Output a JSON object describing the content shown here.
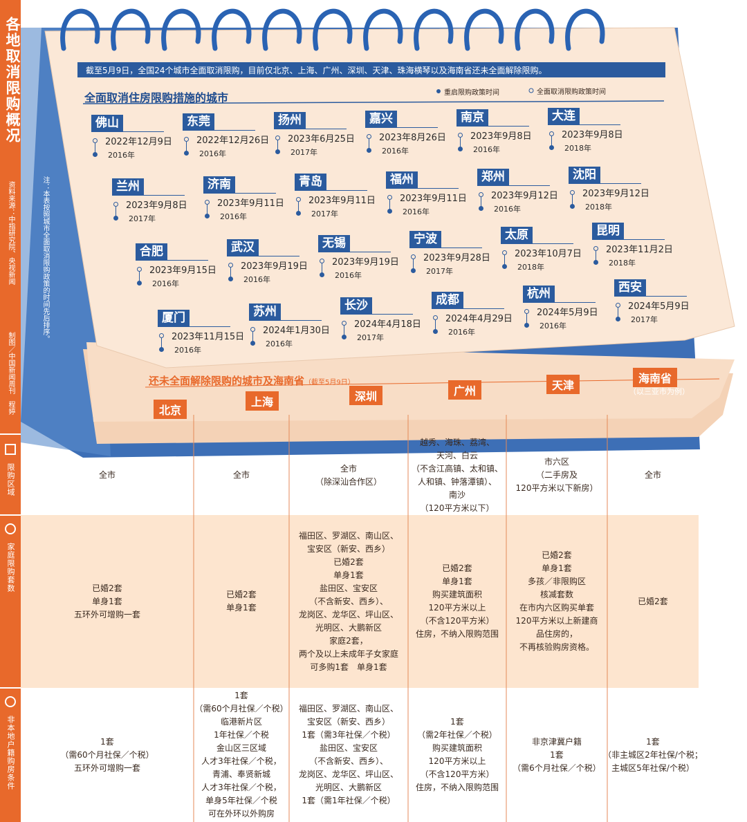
{
  "sidebar": {
    "title": "各地取消限购概况",
    "source": "资料来源：中指研究院、央视新闻",
    "credit": "制图／中国新闻周刊　程婷"
  },
  "note": "注：本表按照城市全面取消限购政策的时间先后排序。",
  "intro": "截至5月9日，全国24个城市全面取消限购，目前仅北京、上海、广州、深圳、天津、珠海横琴以及海南省还未全面解除限购。",
  "section_title": "全面取消住房限购措施的城市",
  "legend": [
    "重启限购政策时间",
    "全面取消限购政策时间"
  ],
  "cities": [
    {
      "name": "佛山",
      "date": "2022年12月9日",
      "year": "2016年"
    },
    {
      "name": "东莞",
      "date": "2022年12月26日",
      "year": "2016年"
    },
    {
      "name": "扬州",
      "date": "2023年6月25日",
      "year": "2017年"
    },
    {
      "name": "嘉兴",
      "date": "2023年8月26日",
      "year": "2016年"
    },
    {
      "name": "南京",
      "date": "2023年9月8日",
      "year": "2016年"
    },
    {
      "name": "大连",
      "date": "2023年9月8日",
      "year": "2018年"
    },
    {
      "name": "兰州",
      "date": "2023年9月8日",
      "year": "2017年"
    },
    {
      "name": "济南",
      "date": "2023年9月11日",
      "year": "2016年"
    },
    {
      "name": "青岛",
      "date": "2023年9月11日",
      "year": "2017年"
    },
    {
      "name": "福州",
      "date": "2023年9月11日",
      "year": "2016年"
    },
    {
      "name": "郑州",
      "date": "2023年9月12日",
      "year": "2016年"
    },
    {
      "name": "沈阳",
      "date": "2023年9月12日",
      "year": "2018年"
    },
    {
      "name": "合肥",
      "date": "2023年9月15日",
      "year": "2016年"
    },
    {
      "name": "武汉",
      "date": "2023年9月19日",
      "year": "2016年"
    },
    {
      "name": "无锡",
      "date": "2023年9月19日",
      "year": "2016年"
    },
    {
      "name": "宁波",
      "date": "2023年9月28日",
      "year": "2017年"
    },
    {
      "name": "太原",
      "date": "2023年10月7日",
      "year": "2018年"
    },
    {
      "name": "昆明",
      "date": "2023年11月2日",
      "year": "2018年"
    },
    {
      "name": "厦门",
      "date": "2023年11月15日",
      "year": "2016年"
    },
    {
      "name": "苏州",
      "date": "2024年1月30日",
      "year": "2016年"
    },
    {
      "name": "长沙",
      "date": "2024年4月18日",
      "year": "2017年"
    },
    {
      "name": "成都",
      "date": "2024年4月29日",
      "year": "2016年"
    },
    {
      "name": "杭州",
      "date": "2024年5月9日",
      "year": "2016年"
    },
    {
      "name": "西安",
      "date": "2024年5月9日",
      "year": "2017年"
    }
  ],
  "table": {
    "title": "还未全面解除限购的城市及海南省",
    "subtitle": "（截至5月9日）",
    "columns": [
      {
        "name": "北京"
      },
      {
        "name": "上海"
      },
      {
        "name": "深圳"
      },
      {
        "name": "广州"
      },
      {
        "name": "天津"
      },
      {
        "name": "海南省",
        "note": "（以三亚市为例）"
      }
    ],
    "rows": [
      {
        "label": "限购区域",
        "cells": [
          [
            "全市"
          ],
          [
            "全市"
          ],
          [
            "全市",
            "（除深汕合作区）"
          ],
          [
            "越秀、海珠、荔湾、",
            "天河、白云",
            "（不含江高镇、太和镇、",
            "人和镇、钟落潭镇）、",
            "南沙",
            "（120平方米以下）"
          ],
          [
            "市六区",
            "（二手房及",
            "120平方米以下新房）"
          ],
          [
            "全市"
          ]
        ]
      },
      {
        "label": "家庭限购套数",
        "cells": [
          [
            "已婚2套",
            "单身1套",
            "五环外可增购一套"
          ],
          [
            "已婚2套",
            "单身1套"
          ],
          [
            "福田区、罗湖区、南山区、",
            "宝安区（新安、西乡）",
            "已婚2套",
            "单身1套",
            "盐田区、宝安区",
            "（不含新安、西乡）、",
            "龙岗区、龙华区、坪山区、",
            "光明区、大鹏新区",
            "家庭2套，",
            "两个及以上未成年子女家庭",
            "可多购1套　单身1套"
          ],
          [
            "已婚2套",
            "单身1套",
            "购买建筑面积",
            "120平方米以上",
            "（不含120平方米）",
            "住房，不纳入限购范围"
          ],
          [
            "已婚2套",
            "单身1套",
            "多孩／非限购区",
            "核减套数",
            "在市内六区购买单套",
            "120平方米以上新建商",
            "品住房的，",
            "不再核验购房资格。"
          ],
          [
            "已婚2套"
          ]
        ]
      },
      {
        "label": "非本地户籍购房条件",
        "cells": [
          [
            "1套",
            "（需60个月社保／个税）",
            "五环外可增购一套"
          ],
          [
            "1套",
            "（需60个月社保／个税）",
            "临港新片区",
            "1年社保／个税",
            "金山区三区域",
            "人才3年社保／个税，",
            "青浦、奉贤新城",
            "人才3年社保／个税，",
            "单身5年社保／个税",
            "可在外环以外购房"
          ],
          [
            "福田区、罗湖区、南山区、",
            "宝安区（新安、西乡）",
            "1套（需3年社保／个税）",
            "盐田区、宝安区",
            "（不含新安、西乡）、",
            "龙岗区、龙华区、坪山区、",
            "光明区、大鹏新区",
            "1套（需1年社保／个税）"
          ],
          [
            "1套",
            "（需2年社保／个税）",
            "购买建筑面积",
            "120平方米以上",
            "（不含120平方米）",
            "住房，不纳入限购范围"
          ],
          [
            "非京津冀户籍",
            "1套",
            "（需6个月社保／个税）"
          ],
          [
            "1套",
            "（非主城区2年社保/个税；",
            "主城区5年社保/个税）"
          ]
        ]
      }
    ]
  }
}
